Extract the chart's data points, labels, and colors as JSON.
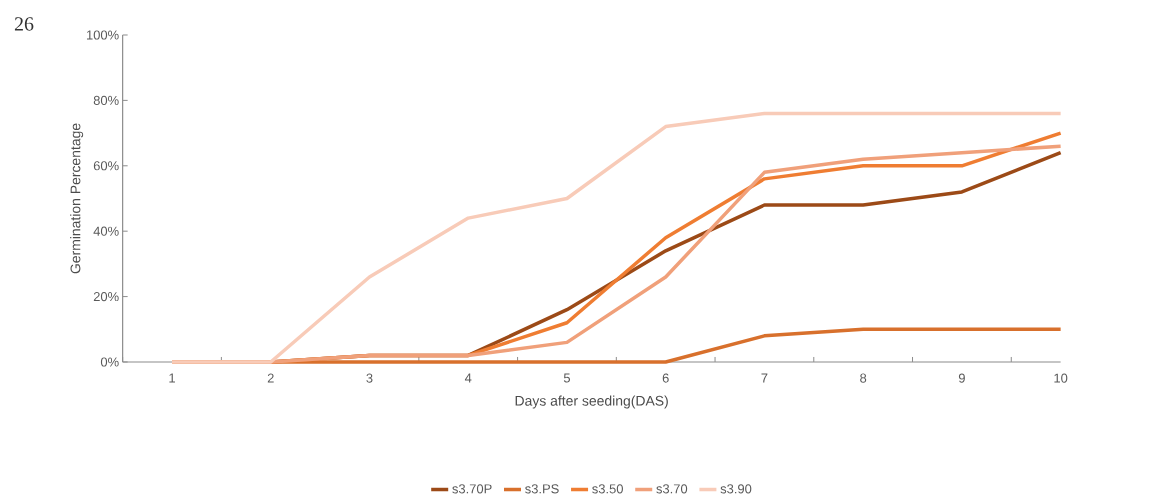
{
  "chart_data": {
    "type": "line",
    "xlabel": "Days after seeding(DAS)",
    "ylabel": "Germination Percentage",
    "annotations": [
      "26"
    ],
    "categories": [
      "1",
      "2",
      "3",
      "4",
      "5",
      "6",
      "7",
      "8",
      "9",
      "10"
    ],
    "ylim": [
      0,
      100
    ],
    "yticks": [
      {
        "value": 0,
        "label": "0%"
      },
      {
        "value": 20,
        "label": "20%"
      },
      {
        "value": 40,
        "label": "40%"
      },
      {
        "value": 60,
        "label": "60%"
      },
      {
        "value": 80,
        "label": "80%"
      },
      {
        "value": 100,
        "label": "100%"
      }
    ],
    "legend": "bottom",
    "grid": false,
    "marker": "none",
    "line_style": "solid",
    "series": [
      {
        "name": "s3.70P",
        "color": "#9c4a17",
        "values": [
          0,
          0,
          2,
          2,
          16,
          34,
          48,
          48,
          52,
          64
        ]
      },
      {
        "name": "s3.PS",
        "color": "#d8702c",
        "values": [
          0,
          0,
          0,
          0,
          0,
          0,
          8,
          10,
          10,
          10
        ]
      },
      {
        "name": "s3.50",
        "color": "#ef7d32",
        "values": [
          0,
          0,
          2,
          2,
          12,
          38,
          56,
          60,
          60,
          70
        ]
      },
      {
        "name": "s3.70",
        "color": "#f0a07a",
        "values": [
          0,
          0,
          2,
          2,
          6,
          26,
          58,
          62,
          64,
          66
        ]
      },
      {
        "name": "s3.90",
        "color": "#f8cbb8",
        "values": [
          0,
          0,
          26,
          44,
          50,
          72,
          76,
          76,
          76,
          76
        ]
      }
    ]
  }
}
